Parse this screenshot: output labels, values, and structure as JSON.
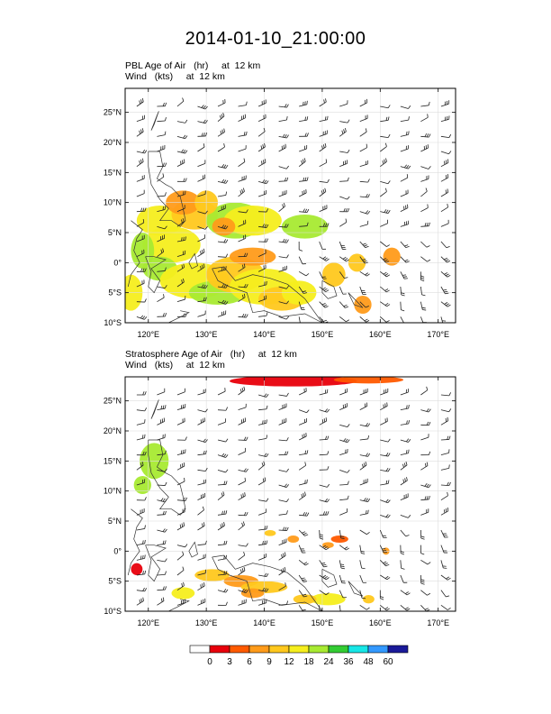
{
  "title": "2014-01-10_21:00:00",
  "chart_data": [
    {
      "type": "heatmap",
      "title": "PBL Age of Air",
      "units": "(hr)",
      "level": "at  12 km",
      "overlay": {
        "title": "Wind",
        "units": "(kts)",
        "level": "at  12 km",
        "type": "wind barbs"
      },
      "xlim": [
        116,
        173
      ],
      "ylim": [
        -10,
        29
      ],
      "x_ticks": [
        120,
        130,
        140,
        150,
        160,
        170
      ],
      "x_tick_labels": [
        "120°E",
        "130°E",
        "140°E",
        "150°E",
        "160°E",
        "170°E"
      ],
      "y_ticks": [
        -10,
        -5,
        0,
        5,
        10,
        15,
        20,
        25
      ],
      "y_tick_labels": [
        "10°S",
        "5°S",
        "0°",
        "5°N",
        "10°N",
        "15°N",
        "20°N",
        "25°N"
      ],
      "grid": true
    },
    {
      "type": "heatmap",
      "title": "Stratosphere Age of Air",
      "units": "(hr)",
      "level": "at  12 km",
      "overlay": {
        "title": "Wind",
        "units": "(kts)",
        "level": "at  12 km",
        "type": "wind barbs"
      },
      "xlim": [
        116,
        173
      ],
      "ylim": [
        -10,
        29
      ],
      "x_ticks": [
        120,
        130,
        140,
        150,
        160,
        170
      ],
      "x_tick_labels": [
        "120°E",
        "130°E",
        "140°E",
        "150°E",
        "160°E",
        "170°E"
      ],
      "y_ticks": [
        -10,
        -5,
        0,
        5,
        10,
        15,
        20,
        25
      ],
      "y_tick_labels": [
        "10°S",
        "5°S",
        "0°",
        "5°N",
        "10°N",
        "15°N",
        "20°N",
        "25°N"
      ],
      "grid": true
    }
  ],
  "colorbar": {
    "levels": [
      "0",
      "3",
      "6",
      "9",
      "12",
      "18",
      "24",
      "36",
      "48",
      "60"
    ],
    "colors": [
      "#ffffff",
      "#e8000b",
      "#ff5a00",
      "#ff9b1a",
      "#ffc81e",
      "#f5ee1e",
      "#a8ea32",
      "#33cc33",
      "#17e6e6",
      "#3399ff",
      "#1a1a99"
    ]
  }
}
